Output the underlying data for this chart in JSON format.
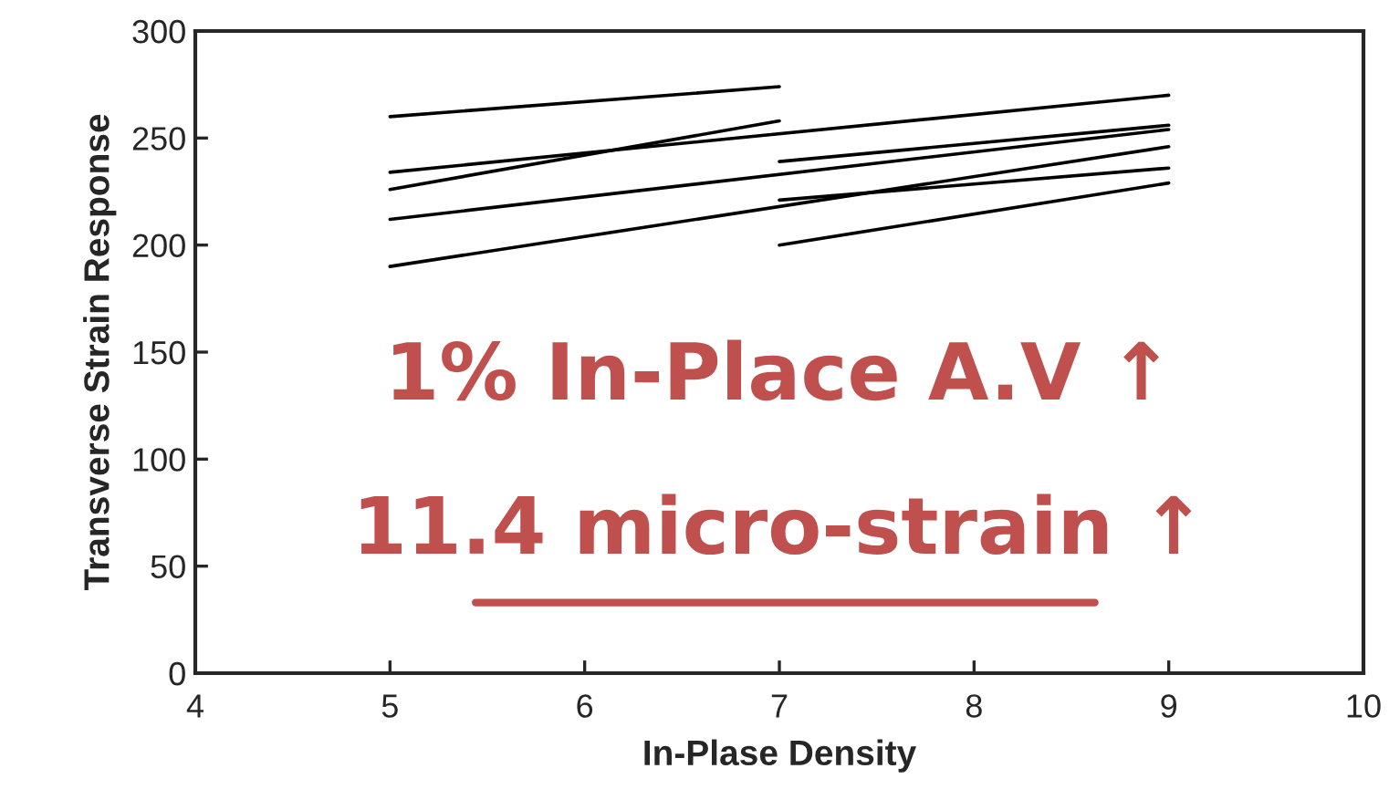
{
  "chart_data": {
    "type": "line",
    "xlabel": "In-Plase Density",
    "ylabel": "Transverse Strain Response",
    "xlim": [
      4,
      10
    ],
    "xticks": [
      4,
      5,
      6,
      7,
      8,
      9,
      10
    ],
    "ylim": [
      0,
      300
    ],
    "yticks": [
      0,
      50,
      100,
      150,
      200,
      250,
      300
    ],
    "grid": false,
    "legend": false,
    "marker": "none",
    "line_style": "solid",
    "series": [
      {
        "color": "#000000",
        "x": [
          5,
          7
        ],
        "values": [
          260,
          274
        ]
      },
      {
        "color": "#000000",
        "x": [
          5,
          9
        ],
        "values": [
          234,
          270
        ]
      },
      {
        "color": "#000000",
        "x": [
          5,
          7
        ],
        "values": [
          226,
          258
        ]
      },
      {
        "color": "#000000",
        "x": [
          5,
          9
        ],
        "values": [
          212,
          254
        ]
      },
      {
        "color": "#000000",
        "x": [
          5,
          9
        ],
        "values": [
          190,
          246
        ]
      },
      {
        "color": "#000000",
        "x": [
          7,
          9
        ],
        "values": [
          239,
          256
        ]
      },
      {
        "color": "#000000",
        "x": [
          7,
          9
        ],
        "values": [
          221,
          236
        ]
      },
      {
        "color": "#000000",
        "x": [
          7,
          9
        ],
        "values": [
          200,
          229
        ]
      }
    ],
    "annotations": [
      "1% In-Place A.V ↑",
      "11.4 micro-strain ↑"
    ]
  }
}
